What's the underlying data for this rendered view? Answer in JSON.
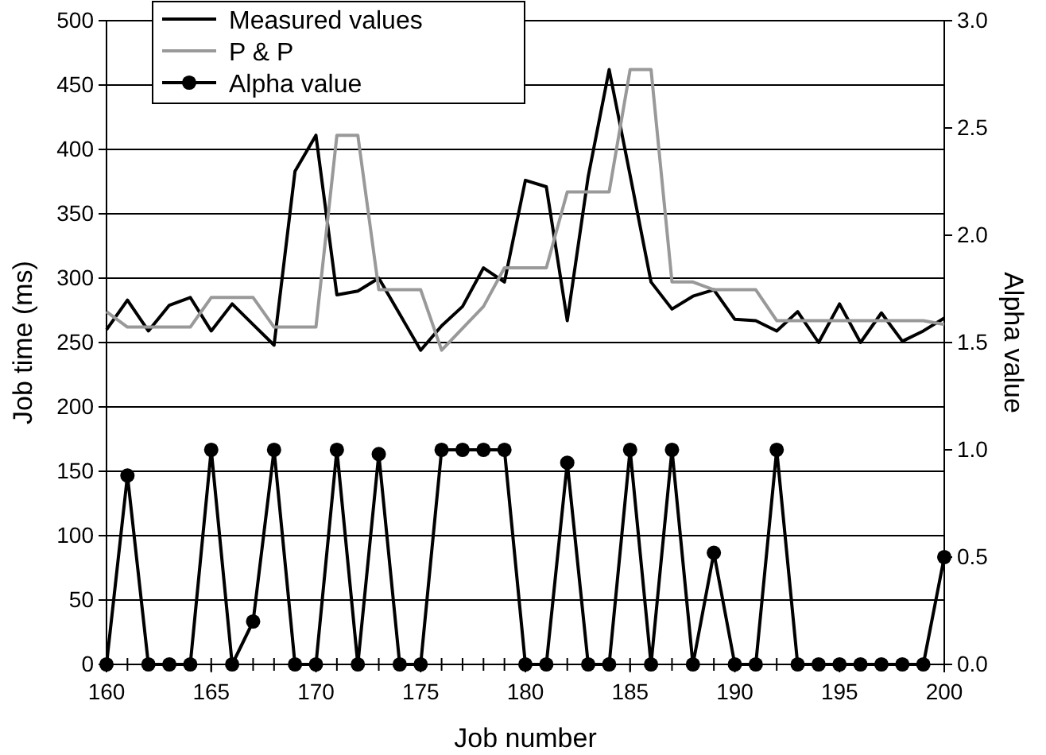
{
  "chart_data": {
    "type": "line",
    "xlabel": "Job number",
    "ylabel": "Job time (ms)",
    "y2label": "Alpha value",
    "x": [
      160,
      161,
      162,
      163,
      164,
      165,
      166,
      167,
      168,
      169,
      170,
      171,
      172,
      173,
      174,
      175,
      176,
      177,
      178,
      179,
      180,
      181,
      182,
      183,
      184,
      185,
      186,
      187,
      188,
      189,
      190,
      191,
      192,
      193,
      194,
      195,
      196,
      197,
      198,
      199,
      200
    ],
    "xlim": [
      160,
      200
    ],
    "xticks": [
      160,
      165,
      170,
      175,
      180,
      185,
      190,
      195,
      200
    ],
    "ylim": [
      0,
      500
    ],
    "yticks": [
      0,
      50,
      100,
      150,
      200,
      250,
      300,
      350,
      400,
      450,
      500
    ],
    "y2lim": [
      0,
      3
    ],
    "y2ticks": [
      {
        "value": 0,
        "label": "0.0"
      },
      {
        "value": 0.5,
        "label": "0.5"
      },
      {
        "value": 1,
        "label": "1.0"
      },
      {
        "value": 1.5,
        "label": "1.5"
      },
      {
        "value": 2,
        "label": "2.0"
      },
      {
        "value": 2.5,
        "label": "2.5"
      },
      {
        "value": 3,
        "label": "3.0"
      }
    ],
    "grid": "y",
    "legend": "top left",
    "series": [
      {
        "name": "Measured values",
        "color": "#000000",
        "marker": "none",
        "values": [
          260,
          283,
          259,
          279,
          285,
          259,
          280,
          264,
          248,
          383,
          411,
          287,
          290,
          300,
          272,
          244,
          263,
          278,
          308,
          297,
          376,
          371,
          267,
          379,
          462,
          380,
          297,
          276,
          286,
          291,
          268,
          267,
          259,
          274,
          250,
          280,
          250,
          273,
          251,
          259,
          269
        ]
      },
      {
        "name": "P & P",
        "color": "#999999",
        "marker": "none",
        "values": [
          274,
          262,
          262,
          262,
          262,
          285,
          285,
          285,
          262,
          262,
          262,
          411,
          411,
          291,
          291,
          291,
          244,
          261,
          278,
          308,
          308,
          308,
          367,
          367,
          367,
          462,
          462,
          297,
          297,
          291,
          291,
          291,
          267,
          267,
          267,
          267,
          267,
          267,
          267,
          267,
          264
        ]
      },
      {
        "name": "Alpha value",
        "color": "#000000",
        "marker": "circle",
        "axis": "y2",
        "values": [
          0,
          0.88,
          0,
          0,
          0,
          1,
          0,
          0.2,
          1,
          0,
          0,
          1,
          0,
          0.98,
          0,
          0,
          1,
          1,
          1,
          1,
          0,
          0,
          0.94,
          0,
          0,
          1,
          0,
          1,
          0,
          0.52,
          0,
          0,
          1,
          0,
          0,
          0,
          0,
          0,
          0,
          0,
          0.5
        ]
      }
    ]
  }
}
